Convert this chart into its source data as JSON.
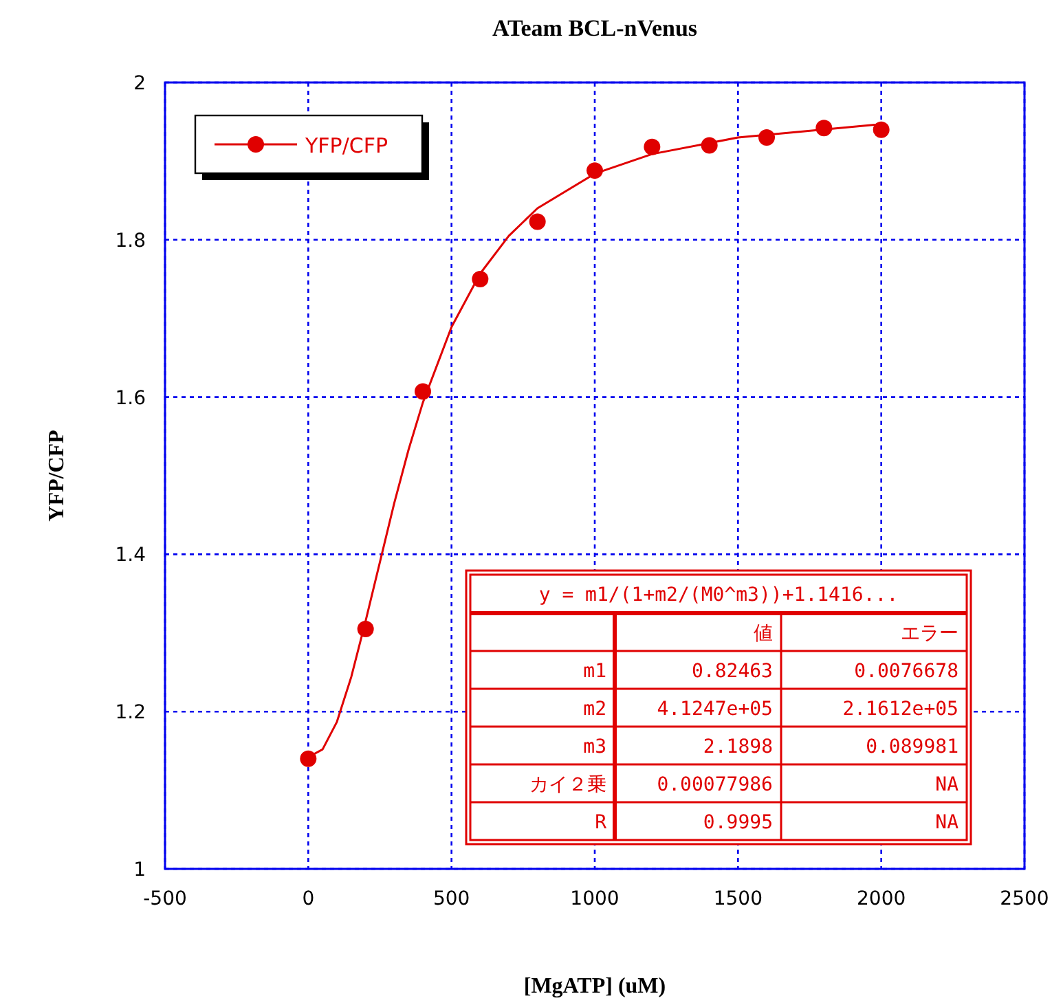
{
  "chart_data": {
    "type": "scatter",
    "title": "ATeam BCL-nVenus",
    "xlabel": "[MgATP] (uM)",
    "ylabel": "YFP/CFP",
    "xlim": [
      -500,
      2500
    ],
    "xticks": [
      -500,
      0,
      500,
      1000,
      1500,
      2000,
      2500
    ],
    "ylim": [
      1,
      2
    ],
    "yticks": [
      1,
      1.2,
      1.4,
      1.6,
      1.8,
      2
    ],
    "grid": true,
    "legend": "top left",
    "series": [
      {
        "name": "YFP/CFP",
        "marker": "circle",
        "color": "#e00000",
        "x": [
          0,
          200,
          400,
          600,
          800,
          1000,
          1200,
          1400,
          1600,
          1800,
          2000
        ],
        "values": [
          1.14,
          1.305,
          1.607,
          1.75,
          1.823,
          1.888,
          1.918,
          1.92,
          1.93,
          1.942,
          1.94
        ]
      },
      {
        "type": "line",
        "color": "#e00000",
        "x": [
          0,
          50,
          100,
          150,
          200,
          250,
          300,
          350,
          400,
          500,
          600,
          700,
          800,
          1000,
          1200,
          1500,
          2000
        ],
        "values": [
          1.142,
          1.152,
          1.187,
          1.244,
          1.315,
          1.39,
          1.465,
          1.533,
          1.593,
          1.689,
          1.757,
          1.805,
          1.84,
          1.884,
          1.909,
          1.93,
          1.947
        ]
      }
    ],
    "annotations": [
      "y = m1/(1+m2/(M0^m3))+1.1416...",
      "値",
      "エラー",
      "m1",
      "0.82463",
      "0.0076678",
      "m2",
      "4.1247e+05",
      "2.1612e+05",
      "m3",
      "2.1898",
      "0.089981",
      "カイ２乗",
      "0.00077986",
      "NA",
      "R",
      "0.9995",
      "NA"
    ]
  }
}
